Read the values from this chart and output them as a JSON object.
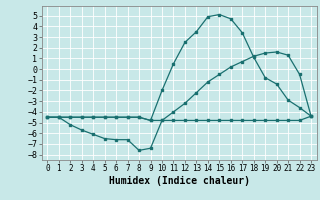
{
  "xlabel": "Humidex (Indice chaleur)",
  "bg_color": "#c8e8e8",
  "grid_color": "#ffffff",
  "line_color": "#1a7070",
  "xlim": [
    -0.5,
    23.5
  ],
  "ylim": [
    -8.5,
    5.9
  ],
  "yticks": [
    -8,
    -7,
    -6,
    -5,
    -4,
    -3,
    -2,
    -1,
    0,
    1,
    2,
    3,
    4,
    5
  ],
  "xticks": [
    0,
    1,
    2,
    3,
    4,
    5,
    6,
    7,
    8,
    9,
    10,
    11,
    12,
    13,
    14,
    15,
    16,
    17,
    18,
    19,
    20,
    21,
    22,
    23
  ],
  "line1_x": [
    0,
    1,
    2,
    3,
    4,
    5,
    6,
    7,
    8,
    9,
    10,
    11,
    12,
    13,
    14,
    15,
    16,
    17,
    18,
    19,
    20,
    21,
    22,
    23
  ],
  "line1_y": [
    -4.5,
    -4.5,
    -5.2,
    -5.7,
    -6.1,
    -6.5,
    -6.6,
    -6.6,
    -7.6,
    -7.4,
    -4.8,
    -4.8,
    -4.8,
    -4.8,
    -4.8,
    -4.8,
    -4.8,
    -4.8,
    -4.8,
    -4.8,
    -4.8,
    -4.8,
    -4.8,
    -4.4
  ],
  "line2_x": [
    0,
    1,
    2,
    3,
    4,
    5,
    6,
    7,
    8,
    9,
    10,
    11,
    12,
    13,
    14,
    15,
    16,
    17,
    18,
    19,
    20,
    21,
    22,
    23
  ],
  "line2_y": [
    -4.5,
    -4.5,
    -4.5,
    -4.5,
    -4.5,
    -4.5,
    -4.5,
    -4.5,
    -4.5,
    -4.8,
    -4.8,
    -4.0,
    -3.2,
    -2.2,
    -1.2,
    -0.5,
    0.2,
    0.7,
    1.2,
    1.5,
    1.6,
    1.3,
    -0.5,
    -4.4
  ],
  "line3_x": [
    0,
    1,
    2,
    3,
    4,
    5,
    6,
    7,
    8,
    9,
    10,
    11,
    12,
    13,
    14,
    15,
    16,
    17,
    18,
    19,
    20,
    21,
    22,
    23
  ],
  "line3_y": [
    -4.5,
    -4.5,
    -4.5,
    -4.5,
    -4.5,
    -4.5,
    -4.5,
    -4.5,
    -4.5,
    -4.8,
    -2.0,
    0.5,
    2.5,
    3.5,
    4.9,
    5.1,
    4.7,
    3.4,
    1.1,
    -0.8,
    -1.4,
    -2.9,
    -3.6,
    -4.4
  ],
  "fontname": "monospace",
  "xlabel_fontsize": 7,
  "tick_fontsize_x": 5.5,
  "tick_fontsize_y": 6
}
